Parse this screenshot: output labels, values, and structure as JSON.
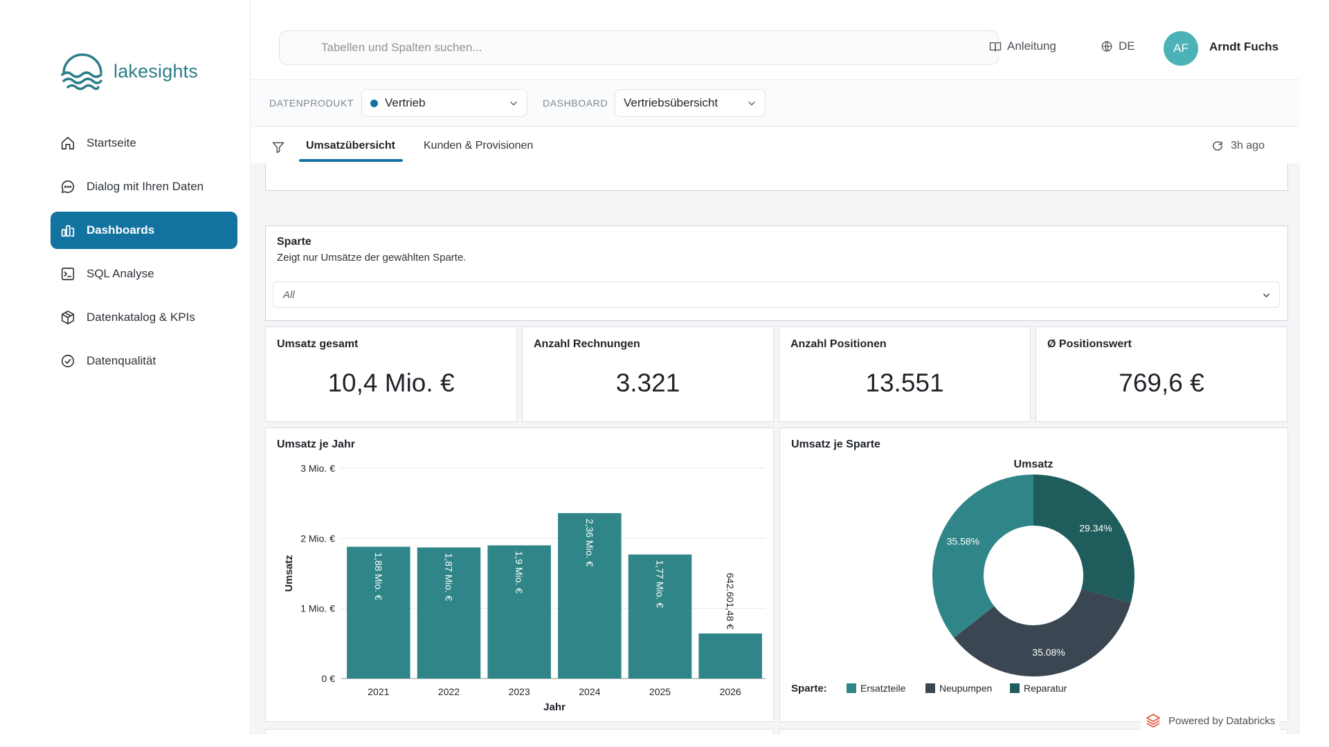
{
  "brand": {
    "name": "lakesights"
  },
  "sidebar": {
    "items": [
      {
        "label": "Startseite",
        "icon": "home-icon"
      },
      {
        "label": "Dialog mit Ihren Daten",
        "icon": "chat-icon"
      },
      {
        "label": "Dashboards",
        "icon": "bar-chart-icon",
        "active": true
      },
      {
        "label": "SQL Analyse",
        "icon": "terminal-icon"
      },
      {
        "label": "Datenkatalog & KPIs",
        "icon": "cube-icon"
      },
      {
        "label": "Datenqualität",
        "icon": "check-circle-icon"
      }
    ]
  },
  "header": {
    "search_placeholder": "Tabellen und Spalten suchen...",
    "guide_label": "Anleitung",
    "language_label": "DE",
    "user_initials": "AF",
    "user_name": "Arndt Fuchs"
  },
  "selectors": {
    "product_label": "DATENPRODUKT",
    "product_value": "Vertrieb",
    "dashboard_label": "DASHBOARD",
    "dashboard_value": "Vertriebsübersicht"
  },
  "tabs": {
    "items": [
      "Umsatzübersicht",
      "Kunden & Provisionen"
    ],
    "active_index": 0,
    "refresh_label": "3h ago"
  },
  "filter": {
    "title": "Sparte",
    "description": "Zeigt nur Umsätze der gewählten Sparte.",
    "value": "All"
  },
  "kpis": [
    {
      "title": "Umsatz gesamt",
      "value": "10,4 Mio. €"
    },
    {
      "title": "Anzahl Rechnungen",
      "value": "3.321"
    },
    {
      "title": "Anzahl Positionen",
      "value": "13.551"
    },
    {
      "title": "Ø Positionswert",
      "value": "769,6 €"
    }
  ],
  "chart_data": [
    {
      "type": "bar",
      "title": "Umsatz je Jahr",
      "xlabel": "Jahr",
      "ylabel": "Umsatz",
      "categories": [
        "2021",
        "2022",
        "2023",
        "2024",
        "2025",
        "2026"
      ],
      "values": [
        1880000,
        1870000,
        1900000,
        2360000,
        1770000,
        642601.48
      ],
      "data_labels": [
        "1,88 Mio. €",
        "1,87 Mio. €",
        "1,9 Mio. €",
        "2,36 Mio. €",
        "1,77 Mio. €",
        "642.601,48 €"
      ],
      "ylim": [
        0,
        3000000
      ],
      "yticks": [
        0,
        1000000,
        2000000,
        3000000
      ],
      "ytick_labels": [
        "0 €",
        "1 Mio. €",
        "2 Mio. €",
        "3 Mio. €"
      ],
      "grid": true,
      "color": "#2f8587"
    },
    {
      "type": "pie",
      "title": "Umsatz je Sparte",
      "subtitle": "Umsatz",
      "legend_title": "Sparte:",
      "legend_position": "bottom-left",
      "labels": [
        "Ersatzteile",
        "Neupumpen",
        "Reparatur"
      ],
      "values": [
        35.58,
        35.08,
        29.34
      ],
      "value_labels": [
        "35.58%",
        "35.08%",
        "29.34%"
      ],
      "colors": [
        "#2f8587",
        "#3a4752",
        "#1e5d5b"
      ],
      "donut": true
    }
  ],
  "footer": {
    "powered_label": "Powered by Databricks"
  }
}
